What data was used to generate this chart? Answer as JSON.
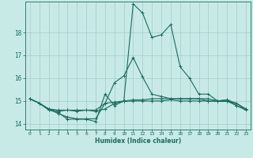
{
  "xlabel": "Humidex (Indice chaleur)",
  "ylabel": "",
  "xlim": [
    -0.5,
    23.5
  ],
  "ylim": [
    13.75,
    19.35
  ],
  "yticks": [
    14,
    15,
    16,
    17,
    18
  ],
  "xticks": [
    0,
    1,
    2,
    3,
    4,
    5,
    6,
    7,
    8,
    9,
    10,
    11,
    12,
    13,
    14,
    15,
    16,
    17,
    18,
    19,
    20,
    21,
    22,
    23
  ],
  "bg_color": "#c8eae6",
  "grid_color": "#a0ccc8",
  "line_color": "#1a6b5e",
  "curves": [
    {
      "x": [
        0,
        1,
        2,
        3,
        4,
        5,
        6,
        7,
        8,
        9,
        10,
        11,
        12,
        13,
        14,
        15,
        16,
        17,
        18,
        19,
        20,
        21,
        22,
        23
      ],
      "y": [
        15.1,
        14.9,
        14.6,
        14.5,
        14.2,
        14.2,
        14.2,
        14.1,
        15.3,
        14.8,
        15.0,
        19.25,
        18.85,
        17.78,
        17.9,
        18.35,
        16.5,
        16.0,
        15.3,
        15.3,
        15.0,
        15.05,
        14.8,
        14.6
      ]
    },
    {
      "x": [
        0,
        1,
        2,
        3,
        4,
        5,
        6,
        7,
        8,
        9,
        10,
        11,
        12,
        13,
        14,
        15,
        16,
        17,
        18,
        19,
        20,
        21,
        22,
        23
      ],
      "y": [
        15.1,
        14.9,
        14.65,
        14.6,
        14.6,
        14.6,
        14.6,
        14.6,
        14.9,
        14.95,
        15.0,
        15.05,
        15.05,
        15.1,
        15.1,
        15.1,
        15.1,
        15.1,
        15.1,
        15.1,
        15.0,
        15.05,
        14.9,
        14.65
      ]
    },
    {
      "x": [
        0,
        1,
        2,
        3,
        4,
        5,
        6,
        7,
        8,
        9,
        10,
        11,
        12,
        13,
        14,
        15,
        16,
        17,
        18,
        19,
        20,
        21,
        22,
        23
      ],
      "y": [
        15.1,
        14.9,
        14.65,
        14.55,
        14.6,
        14.55,
        14.6,
        14.55,
        14.65,
        14.9,
        14.98,
        15.0,
        15.0,
        15.0,
        15.0,
        15.05,
        15.0,
        15.0,
        15.0,
        15.0,
        14.98,
        14.98,
        14.9,
        14.65
      ]
    },
    {
      "x": [
        0,
        1,
        2,
        3,
        4,
        5,
        6,
        7,
        8,
        9,
        10,
        11,
        12,
        13,
        14,
        15,
        16,
        17,
        18,
        19,
        20,
        21,
        22,
        23
      ],
      "y": [
        15.1,
        14.9,
        14.65,
        14.45,
        14.3,
        14.22,
        14.22,
        14.22,
        14.9,
        15.8,
        16.1,
        16.9,
        16.05,
        15.3,
        15.2,
        15.1,
        15.1,
        15.1,
        15.1,
        15.0,
        15.0,
        15.0,
        14.8,
        14.65
      ]
    }
  ]
}
